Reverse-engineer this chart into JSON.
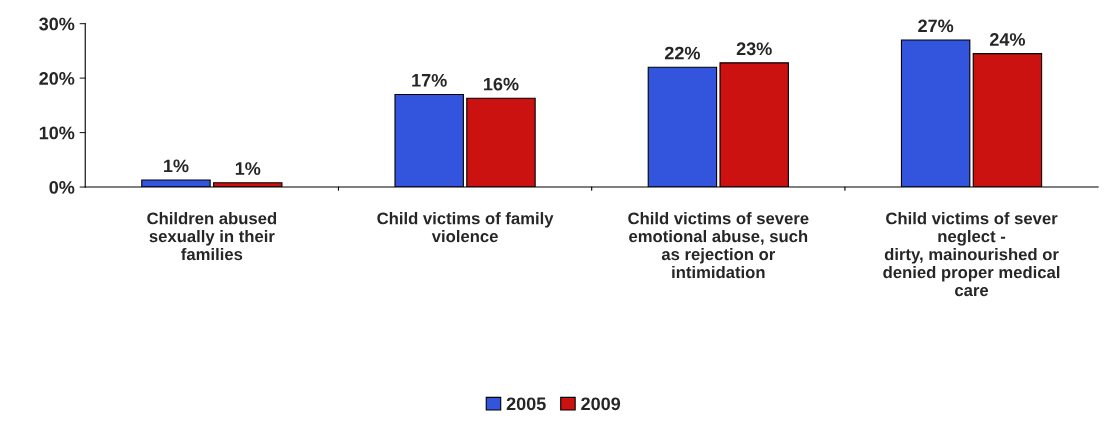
{
  "chart_data": {
    "type": "bar",
    "categories": [
      "Children abused\nsexually in their\nfamilies",
      "Child victims of family\nviolence",
      "Child victims of severe\nemotional abuse, such\nas rejection or\nintimidation",
      "Child victims of sever\nneglect -\ndirty, mainourished or\ndenied proper medical\ncare"
    ],
    "series": [
      {
        "name": "2005",
        "color": "#3355dd",
        "values": [
          1.3,
          17,
          22,
          27
        ],
        "value_labels": [
          "1%",
          "17%",
          "22%",
          "27%"
        ]
      },
      {
        "name": "2009",
        "color": "#cc1111",
        "values": [
          0.8,
          16.3,
          22.8,
          24.5
        ],
        "value_labels": [
          "1%",
          "16%",
          "23%",
          "24%"
        ]
      }
    ],
    "ylim": [
      0,
      30
    ],
    "yticks": [
      {
        "value": 0,
        "label": "0%"
      },
      {
        "value": 10,
        "label": "10%"
      },
      {
        "value": 20,
        "label": "20%"
      },
      {
        "value": 30,
        "label": "30%"
      }
    ],
    "grid": false,
    "legend": "bottom"
  }
}
